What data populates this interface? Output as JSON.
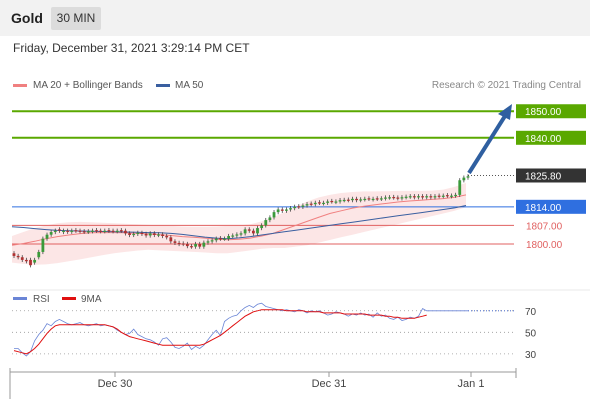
{
  "header": {
    "title": "Gold",
    "timeframe": "30 MIN"
  },
  "timestamp": "Friday, December 31, 2021 3:29:14 PM CET",
  "legend": {
    "ma20": "MA 20 + Bollinger Bands",
    "ma50": "MA 50",
    "ma20_color": "#f08080",
    "ma50_color": "#3a5fa0"
  },
  "copyright": "Research © 2021 Trading Central",
  "colors": {
    "target": "#5aa800",
    "pivot": "#2f6fe0",
    "support": "#e06060",
    "last": "#333333",
    "arrow": "#2f5fa0",
    "up_candle": "#3a9a3a",
    "down_candle": "#b03030"
  },
  "chart_data": [
    {
      "type": "candlestick",
      "title": "Gold",
      "x_tick_labels": [
        "Dec 30",
        "Dec 31",
        "Jan 1"
      ],
      "levels": [
        {
          "label": "1850.00",
          "value": 1850.0,
          "kind": "target"
        },
        {
          "label": "1840.00",
          "value": 1840.0,
          "kind": "target"
        },
        {
          "label": "1825.80",
          "value": 1825.8,
          "kind": "last"
        },
        {
          "label": "1814.00",
          "value": 1814.0,
          "kind": "pivot"
        },
        {
          "label": "1807.00",
          "value": 1807.0,
          "kind": "support"
        },
        {
          "label": "1800.00",
          "value": 1800.0,
          "kind": "support"
        }
      ],
      "ylim": [
        1790.2,
        1851.6
      ],
      "close": [
        1795.5,
        1795.0,
        1794.0,
        1793.5,
        1792.0,
        1794.0,
        1797.0,
        1802.0,
        1803.5,
        1804.5,
        1805.0,
        1805.0,
        1805.0,
        1804.6,
        1805.0,
        1805.0,
        1804.8,
        1804.6,
        1804.8,
        1805.0,
        1805.0,
        1804.8,
        1805.0,
        1805.0,
        1804.8,
        1805.0,
        1805.0,
        1804.0,
        1803.4,
        1803.8,
        1804.2,
        1803.8,
        1803.2,
        1804.0,
        1803.4,
        1803.6,
        1803.0,
        1802.5,
        1801.0,
        1800.4,
        1800.0,
        1800.0,
        1799.2,
        1799.0,
        1800.0,
        1799.0,
        1800.5,
        1801.0,
        1801.4,
        1802.0,
        1802.0,
        1802.0,
        1803.0,
        1803.2,
        1803.6,
        1804.0,
        1805.5,
        1805.0,
        1804.0,
        1806.0,
        1807.0,
        1809.0,
        1810.0,
        1812.0,
        1813.0,
        1812.5,
        1813.0,
        1813.5,
        1814.0,
        1814.0,
        1814.5,
        1815.0,
        1815.0,
        1815.5,
        1815.5,
        1815.5,
        1816.0,
        1816.0,
        1816.0,
        1816.5,
        1816.6,
        1816.5,
        1817.0,
        1816.5,
        1816.8,
        1817.0,
        1817.0,
        1817.0,
        1817.0,
        1817.2,
        1817.5,
        1817.6,
        1817.5,
        1817.2,
        1817.6,
        1817.8,
        1818.0,
        1817.6,
        1818.0,
        1817.6,
        1818.0,
        1817.6,
        1818.0,
        1818.0,
        1818.2,
        1818.2,
        1818.2,
        1818.5,
        1824.0,
        1825.0,
        1825.5
      ],
      "open": [
        1796.5,
        1795.5,
        1795.0,
        1794.0,
        1794.0,
        1793.0,
        1795.0,
        1797.0,
        1802.0,
        1803.5,
        1804.5,
        1805.5,
        1804.5,
        1805.0,
        1804.6,
        1805.2,
        1805.0,
        1804.8,
        1804.6,
        1804.8,
        1805.2,
        1805.0,
        1804.8,
        1805.2,
        1805.0,
        1804.8,
        1805.2,
        1805.0,
        1804.0,
        1803.4,
        1803.8,
        1804.2,
        1803.8,
        1803.2,
        1804.0,
        1803.4,
        1803.6,
        1803.0,
        1802.5,
        1801.0,
        1800.4,
        1800.2,
        1800.0,
        1799.2,
        1799.0,
        1800.0,
        1799.0,
        1800.5,
        1801.0,
        1801.4,
        1802.2,
        1802.0,
        1802.0,
        1803.0,
        1803.2,
        1803.6,
        1804.0,
        1805.5,
        1805.0,
        1804.0,
        1806.0,
        1807.0,
        1809.0,
        1810.0,
        1812.0,
        1813.0,
        1812.5,
        1813.0,
        1813.5,
        1814.2,
        1814.0,
        1814.5,
        1815.2,
        1815.0,
        1815.7,
        1815.3,
        1815.5,
        1816.2,
        1815.8,
        1816.0,
        1816.5,
        1816.7,
        1816.5,
        1817.0,
        1816.5,
        1816.8,
        1817.2,
        1816.8,
        1817.2,
        1817.0,
        1817.2,
        1817.5,
        1817.7,
        1817.5,
        1817.2,
        1817.6,
        1817.8,
        1818.0,
        1817.6,
        1818.0,
        1817.6,
        1818.0,
        1817.6,
        1818.2,
        1818.0,
        1818.4,
        1818.0,
        1818.2,
        1818.5,
        1824.0,
        1825.0
      ],
      "bollinger_upper": [
        1803,
        1804.5,
        1806,
        1807,
        1807.8,
        1808.2,
        1808.3,
        1808.2,
        1808,
        1807.8,
        1807.6,
        1807.4,
        1807.2,
        1807,
        1806.8,
        1806.6,
        1806.5,
        1806.5,
        1806.6,
        1806.8,
        1807,
        1807.4,
        1808.5,
        1810,
        1812,
        1814,
        1816,
        1817.5,
        1818.5,
        1819.2,
        1819.6,
        1819.8,
        1819.8,
        1819.9,
        1820,
        1820,
        1820,
        1820.1,
        1820.5,
        1821.5,
        1823
      ],
      "bollinger_lower": [
        1793,
        1792.5,
        1792.2,
        1792.3,
        1792.8,
        1793.5,
        1794.2,
        1795,
        1795.8,
        1796.5,
        1797,
        1797.5,
        1797.8,
        1797.6,
        1797.4,
        1797.2,
        1797,
        1796.8,
        1796.5,
        1796.5,
        1797,
        1797.6,
        1798.2,
        1798.5,
        1798.5,
        1799,
        1799.5,
        1800.5,
        1801.5,
        1802.5,
        1803.5,
        1804.5,
        1805.5,
        1806.5,
        1807.5,
        1808.5,
        1809.5,
        1810.5,
        1811.5,
        1812.5,
        1813.8
      ],
      "ma20": [
        1799.5,
        1800.2,
        1801,
        1802,
        1802.8,
        1803.4,
        1803.9,
        1804.2,
        1804.3,
        1804.3,
        1804.2,
        1804,
        1803.8,
        1803.5,
        1803.2,
        1802.8,
        1802.5,
        1802.2,
        1801.8,
        1801.6,
        1801.8,
        1802.2,
        1803,
        1804,
        1805.5,
        1807,
        1808.5,
        1810,
        1811.5,
        1812.5,
        1813.5,
        1814.2,
        1814.8,
        1815.3,
        1815.8,
        1816.2,
        1816.5,
        1816.8,
        1817.1,
        1817.6,
        1818.5
      ],
      "ma50": [
        1806.5,
        1806.2,
        1805.8,
        1805.4,
        1805.1,
        1805,
        1804.9,
        1804.8,
        1804.7,
        1804.6,
        1804.5,
        1804.4,
        1804.3,
        1804.2,
        1804,
        1803.6,
        1803.1,
        1802.6,
        1802.2,
        1802,
        1802.3,
        1802.8,
        1803.4,
        1804,
        1804.6,
        1805.2,
        1805.8,
        1806.4,
        1807,
        1807.6,
        1808.2,
        1808.8,
        1809.4,
        1810,
        1810.6,
        1811.2,
        1811.8,
        1812.4,
        1813,
        1813.6,
        1814.5
      ]
    },
    {
      "type": "line",
      "title": "RSI",
      "series": [
        {
          "name": "RSI",
          "color": "#6a85d6",
          "values": [
            35,
            35,
            31,
            28,
            32,
            42,
            48,
            52,
            58,
            56,
            60,
            62,
            60,
            58,
            57,
            58,
            59,
            57,
            56,
            57,
            58,
            56,
            57,
            56,
            55,
            52,
            50,
            48,
            49,
            53,
            48,
            46,
            44,
            43,
            41,
            38,
            44,
            45,
            41,
            36,
            35,
            37,
            40,
            34,
            37,
            35,
            38,
            43,
            48,
            52,
            47,
            60,
            63,
            65,
            66,
            70,
            73,
            75,
            73,
            76,
            77,
            74,
            73,
            72,
            71,
            70,
            71,
            70,
            69,
            71,
            70,
            68,
            70,
            69,
            70,
            68,
            66,
            67,
            69,
            68,
            67,
            65,
            67,
            66,
            68,
            66,
            67,
            64,
            68,
            65,
            66,
            63,
            62,
            64,
            61,
            62,
            64,
            63,
            65,
            72,
            70,
            70,
            70,
            70,
            70,
            70,
            70,
            70,
            70,
            70,
            70,
            70
          ]
        },
        {
          "name": "9MA",
          "color": "#e01010",
          "values": [
            33,
            32,
            31,
            30,
            32,
            35,
            39,
            44,
            49,
            53,
            56,
            57,
            57,
            57,
            57,
            57,
            57,
            57,
            57,
            57,
            57,
            57,
            57,
            56,
            55,
            53,
            50,
            48,
            46,
            45,
            44,
            43,
            42,
            41,
            40,
            39,
            38,
            38,
            38,
            38,
            38,
            38,
            38,
            38,
            38,
            38,
            39,
            41,
            43,
            45,
            47,
            50,
            53,
            56,
            59,
            62,
            65,
            67,
            69,
            70,
            71,
            71,
            71,
            71,
            71,
            71,
            70,
            70,
            70,
            70,
            70,
            69,
            69,
            69,
            69,
            68,
            68,
            68,
            68,
            68,
            67,
            67,
            67,
            67,
            67,
            67,
            66,
            66,
            66,
            66,
            65,
            65,
            64,
            64,
            63,
            63,
            63,
            63,
            64,
            65,
            66
          ]
        }
      ],
      "y_tick_labels": [
        "70",
        "50",
        "30"
      ],
      "ylim": [
        15,
        80
      ]
    }
  ]
}
